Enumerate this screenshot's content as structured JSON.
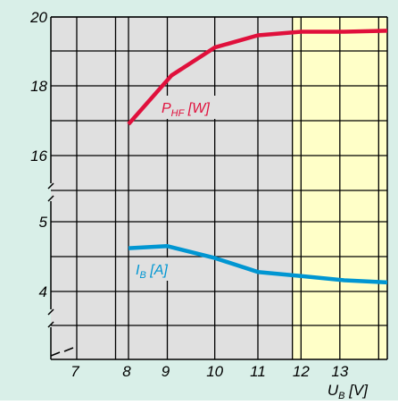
{
  "chart_data": {
    "type": "line",
    "background_color": "#d9efe8",
    "plot_color": "#e0e0e0",
    "highlight_color": "#ffffc8",
    "grid": true,
    "x_ticks": [
      "7",
      "8",
      "9",
      "10",
      "11",
      "12",
      "13"
    ],
    "x_axis_label": {
      "main": "U",
      "sub": "B",
      "unit": " [V]"
    },
    "upper_y_ticks": [
      "16",
      "18",
      "20"
    ],
    "lower_y_ticks": [
      "4",
      "5"
    ],
    "highlight_range": [
      11.8,
      14
    ],
    "series": [
      {
        "label_main": "P",
        "label_sub": "HF",
        "label_unit": " [W]",
        "color": "#e0103c",
        "axis": "upper",
        "x": [
          8,
          9,
          10,
          11,
          12,
          13,
          14
        ],
        "y": [
          16.9,
          18.3,
          19.1,
          19.45,
          19.55,
          19.55,
          19.58
        ]
      },
      {
        "label_main": "I",
        "label_sub": "B",
        "label_unit": " [A]",
        "color": "#0096d2",
        "axis": "lower",
        "x": [
          8,
          8.9,
          10,
          11,
          12,
          13,
          14
        ],
        "y": [
          4.62,
          4.65,
          4.48,
          4.28,
          4.22,
          4.16,
          4.13
        ]
      }
    ]
  }
}
